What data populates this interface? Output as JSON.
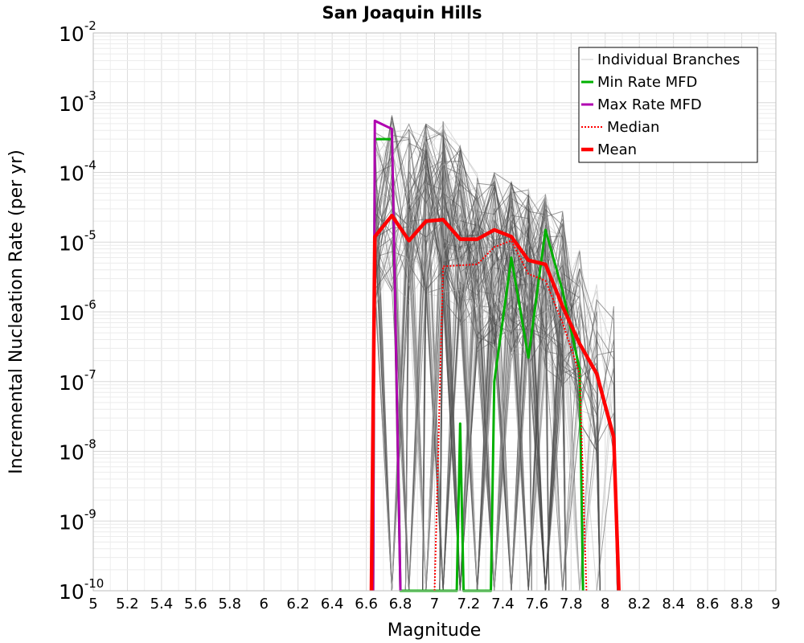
{
  "chart_data": {
    "type": "line",
    "title": "San Joaquin Hills",
    "xlabel": "Magnitude",
    "ylabel": "Incremental Nucleation Rate (per yr)",
    "xlim": [
      5,
      9
    ],
    "ylim": [
      1e-10,
      0.01
    ],
    "yscale": "log",
    "grid": true,
    "legend_position": "top-right",
    "x_ticks": [
      "5",
      "5.2",
      "5.4",
      "5.6",
      "5.8",
      "6",
      "6.2",
      "6.4",
      "6.6",
      "6.8",
      "7",
      "7.2",
      "7.4",
      "7.6",
      "7.8",
      "8",
      "8.2",
      "8.4",
      "8.6",
      "8.8",
      "9"
    ],
    "y_ticks": [
      {
        "base": "10",
        "exp": "-10",
        "value": 1e-10
      },
      {
        "base": "10",
        "exp": "-9",
        "value": 1e-09
      },
      {
        "base": "10",
        "exp": "-8",
        "value": 1e-08
      },
      {
        "base": "10",
        "exp": "-7",
        "value": 1e-07
      },
      {
        "base": "10",
        "exp": "-6",
        "value": 1e-06
      },
      {
        "base": "10",
        "exp": "-5",
        "value": 1e-05
      },
      {
        "base": "10",
        "exp": "-4",
        "value": 0.0001
      },
      {
        "base": "10",
        "exp": "-3",
        "value": 0.001
      },
      {
        "base": "10",
        "exp": "-2",
        "value": 0.01
      }
    ],
    "envelope": {
      "x": [
        6.65,
        6.75,
        6.85,
        6.95,
        7.05,
        7.15,
        7.25,
        7.35,
        7.45,
        7.55,
        7.65,
        7.75,
        7.85,
        7.95,
        8.05
      ],
      "max": [
        0.0004,
        0.0007,
        0.0005,
        0.0005,
        0.00055,
        0.00025,
        0.0001,
        0.0001,
        8e-05,
        6e-05,
        5e-05,
        3e-05,
        8e-06,
        3e-06,
        1.5e-06
      ]
    },
    "series": [
      {
        "name": "Individual Branches",
        "color": "#555555",
        "points": []
      },
      {
        "name": "Min Rate MFD",
        "color": "#00b000",
        "points": [
          [
            6.64,
            1e-10
          ],
          [
            6.65,
            0.0003
          ],
          [
            6.75,
            0.0003
          ],
          [
            6.8,
            1e-10
          ],
          [
            7.13,
            1e-10
          ],
          [
            7.15,
            2.5e-08
          ],
          [
            7.17,
            1e-10
          ],
          [
            7.33,
            1e-10
          ],
          [
            7.35,
            1e-07
          ],
          [
            7.45,
            6e-06
          ],
          [
            7.55,
            2.2e-07
          ],
          [
            7.65,
            1.5e-05
          ],
          [
            7.75,
            2e-06
          ],
          [
            7.85,
            1.5e-07
          ],
          [
            7.87,
            1e-10
          ]
        ]
      },
      {
        "name": "Max Rate MFD",
        "color": "#b000b0",
        "points": [
          [
            6.64,
            1e-10
          ],
          [
            6.65,
            0.00055
          ],
          [
            6.75,
            0.00042
          ],
          [
            6.8,
            1e-10
          ]
        ]
      },
      {
        "name": "Median",
        "color": "#ff0000",
        "points": [
          [
            7.0,
            1e-10
          ],
          [
            7.05,
            4.5e-06
          ],
          [
            7.25,
            4.8e-06
          ],
          [
            7.35,
            8.5e-06
          ],
          [
            7.45,
            1.05e-05
          ],
          [
            7.55,
            3.5e-06
          ],
          [
            7.65,
            2.8e-06
          ],
          [
            7.75,
            7e-07
          ],
          [
            7.85,
            1.3e-07
          ],
          [
            7.89,
            1e-10
          ]
        ]
      },
      {
        "name": "Mean",
        "color": "#ff0000",
        "points": [
          [
            6.63,
            1e-10
          ],
          [
            6.65,
            1.2e-05
          ],
          [
            6.75,
            2.4e-05
          ],
          [
            6.85,
            1.05e-05
          ],
          [
            6.95,
            2e-05
          ],
          [
            7.05,
            2.1e-05
          ],
          [
            7.15,
            1.1e-05
          ],
          [
            7.25,
            1.1e-05
          ],
          [
            7.35,
            1.5e-05
          ],
          [
            7.45,
            1.2e-05
          ],
          [
            7.55,
            5.5e-06
          ],
          [
            7.65,
            4.8e-06
          ],
          [
            7.75,
            1.2e-06
          ],
          [
            7.85,
            3.5e-07
          ],
          [
            7.95,
            1.3e-07
          ],
          [
            8.05,
            1.6e-08
          ],
          [
            8.08,
            1e-10
          ]
        ]
      }
    ]
  }
}
